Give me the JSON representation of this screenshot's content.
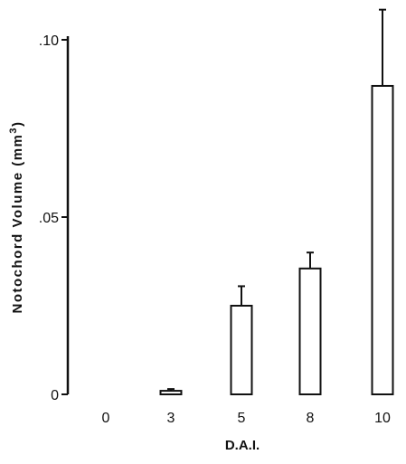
{
  "chart_data": {
    "type": "bar",
    "title": "",
    "xlabel": "D.A.I.",
    "ylabel": "Notochord Volume  (mm",
    "ylabel_superscript": "3",
    "ylabel_close": ")",
    "categories": [
      "0",
      "3",
      "5",
      "8",
      "10"
    ],
    "series": [
      {
        "values": [
          0,
          0.001,
          0.025,
          0.0355,
          0.087
        ],
        "error_upper": [
          0,
          0.0015,
          0.0305,
          0.04,
          0.1085
        ]
      }
    ],
    "ylim": [
      0,
      0.1
    ],
    "yticks": [
      {
        "value": 0,
        "label": "0"
      },
      {
        "value": 0.05,
        "label": ".05"
      },
      {
        "value": 0.1,
        "label": ".10"
      }
    ],
    "grid": false,
    "legend": "none",
    "colors": {
      "bar_fill": "#ffffff",
      "stroke": "#111111"
    }
  }
}
